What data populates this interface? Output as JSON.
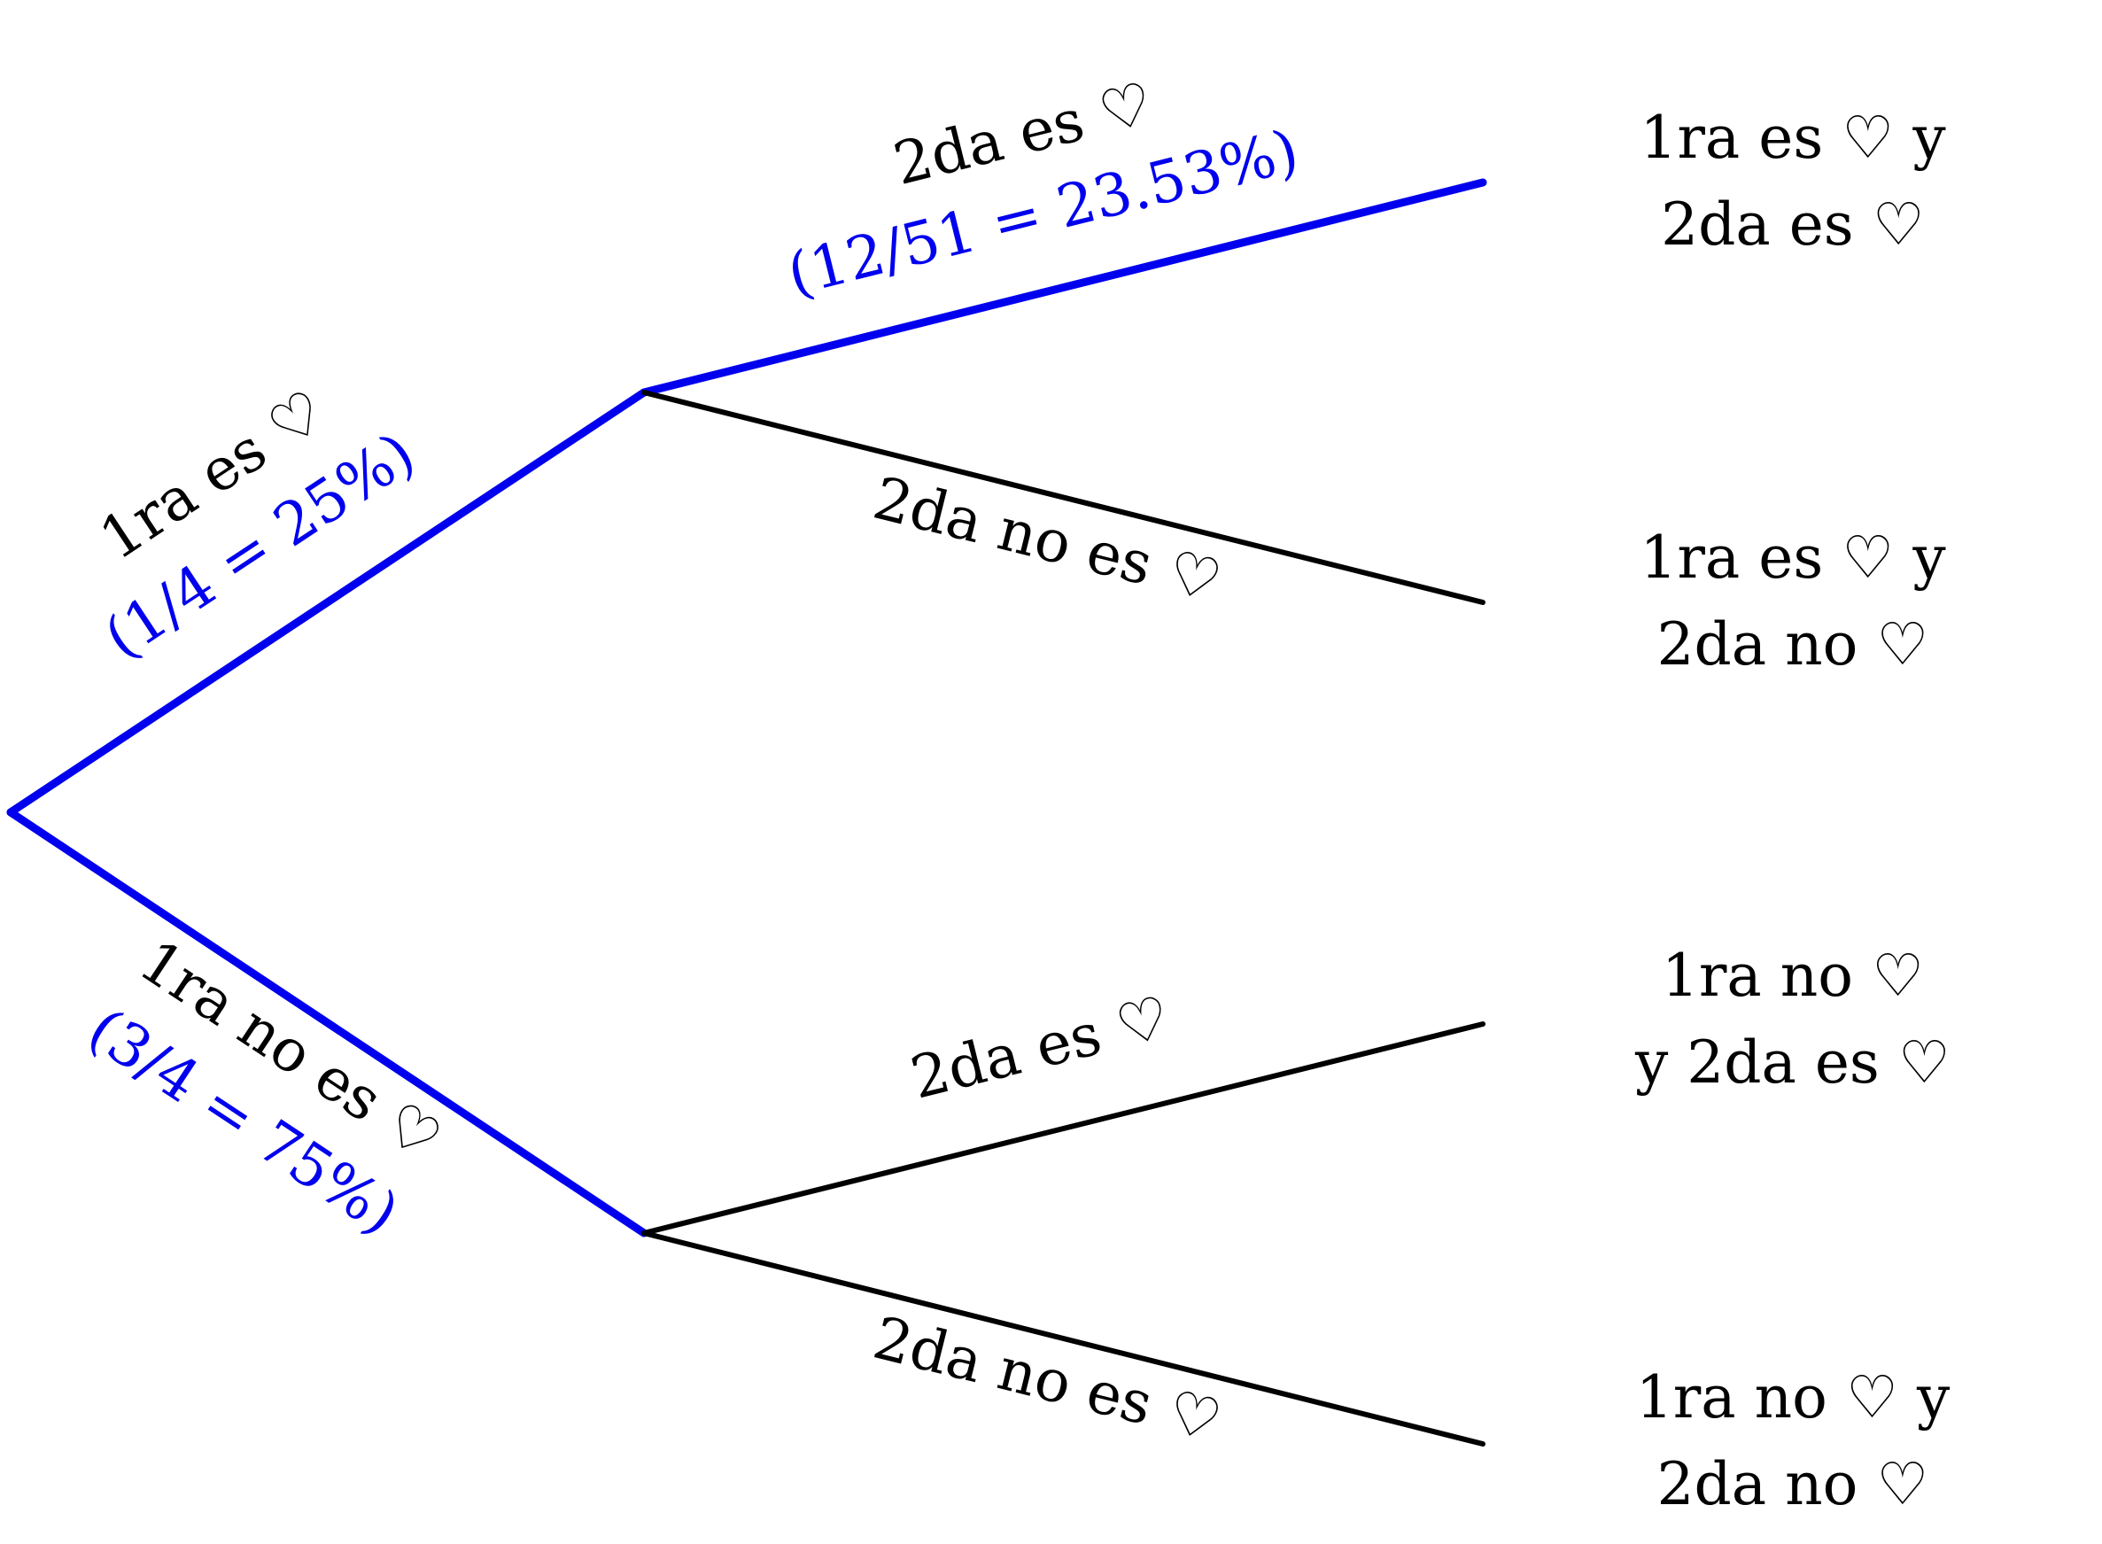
{
  "colors": {
    "highlight": "#0000ee",
    "normal": "#000000"
  },
  "tree": {
    "first_level": {
      "upper": {
        "label": "1ra es ♡",
        "probability": "(1/4 = 25%)",
        "highlighted": true
      },
      "lower": {
        "label": "1ra no es ♡",
        "probability": "(3/4 = 75%)",
        "highlighted": true
      }
    },
    "second_level": {
      "upper_upper": {
        "label": "2da es ♡",
        "probability": "(12/51 = 23.53%)",
        "highlighted": true
      },
      "upper_lower": {
        "label": "2da no es ♡",
        "highlighted": false
      },
      "lower_upper": {
        "label": "2da es ♡",
        "highlighted": false
      },
      "lower_lower": {
        "label": "2da no es ♡",
        "highlighted": false
      }
    },
    "outcomes": [
      {
        "line1": "1ra es ♡ y",
        "line2": "2da es ♡"
      },
      {
        "line1": "1ra es ♡ y",
        "line2": "2da no ♡"
      },
      {
        "line1": "1ra no ♡",
        "line2": "y 2da es ♡"
      },
      {
        "line1": "1ra no ♡ y",
        "line2": "2da no ♡"
      }
    ]
  }
}
